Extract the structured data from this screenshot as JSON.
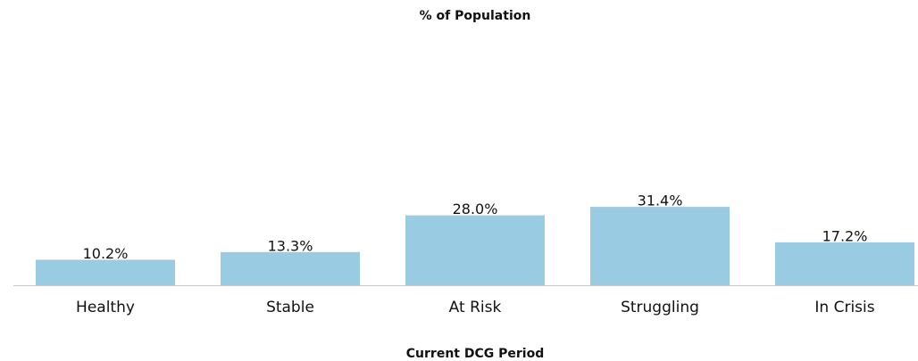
{
  "chart_data": {
    "type": "bar",
    "title": "% of Population",
    "x_label": "Current DCG Period",
    "categories": [
      "Healthy",
      "Stable",
      "At Risk",
      "Struggling",
      "In Crisis"
    ],
    "values": [
      10.2,
      13.3,
      28.0,
      31.4,
      17.2
    ],
    "value_labels": [
      "10.2%",
      "13.3%",
      "28.0%",
      "31.4%",
      "17.2%"
    ],
    "color": "#99cce3",
    "ylim": [
      0,
      100
    ],
    "grid": false
  }
}
